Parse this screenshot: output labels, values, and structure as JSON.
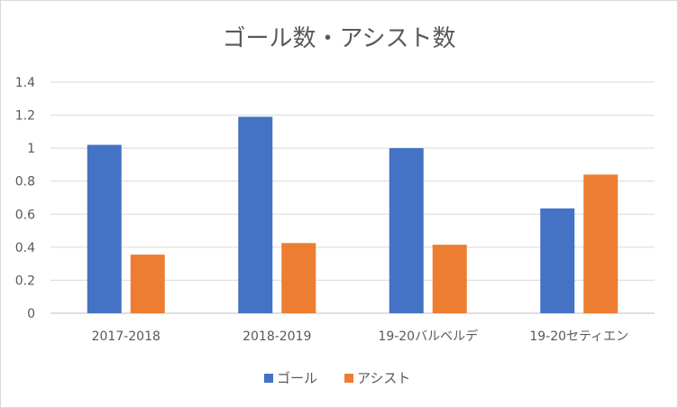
{
  "chart_data": {
    "type": "bar",
    "title": "ゴール数・アシスト数",
    "categories": [
      "2017-2018",
      "2018-2019",
      "19-20バルベルデ",
      "19-20セティエン"
    ],
    "series": [
      {
        "name": "ゴール",
        "color": "#4472C4",
        "values": [
          1.02,
          1.19,
          1.0,
          0.635
        ]
      },
      {
        "name": "アシスト",
        "color": "#ED7D31",
        "values": [
          0.355,
          0.425,
          0.415,
          0.84
        ]
      }
    ],
    "yticks": [
      "0",
      "0.2",
      "0.4",
      "0.6",
      "0.8",
      "1",
      "1.2",
      "1.4"
    ],
    "ylim": [
      0,
      1.4
    ],
    "grid": true,
    "legend": "bottom"
  }
}
